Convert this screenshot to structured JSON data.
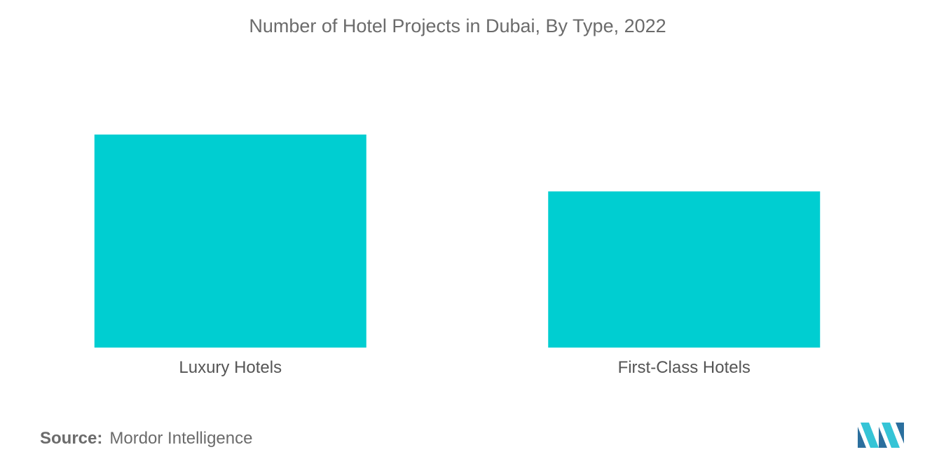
{
  "chart_data": {
    "type": "bar",
    "title": "Number of Hotel Projects in Dubai, By Type, 2022",
    "categories": [
      "Luxury Hotels",
      "First-Class Hotels"
    ],
    "values": [
      100,
      73.3
    ],
    "ylim": [
      0,
      100
    ],
    "xlabel": "",
    "ylabel": "",
    "grid": false,
    "legend": "none",
    "bar_color": "#00CED1"
  },
  "footer": {
    "source_label": "Source:",
    "source_value": "Mordor Intelligence"
  },
  "logo": {
    "icon": "mordor-intelligence-logo",
    "colors": [
      "#2B6F9E",
      "#35C4D6"
    ]
  }
}
